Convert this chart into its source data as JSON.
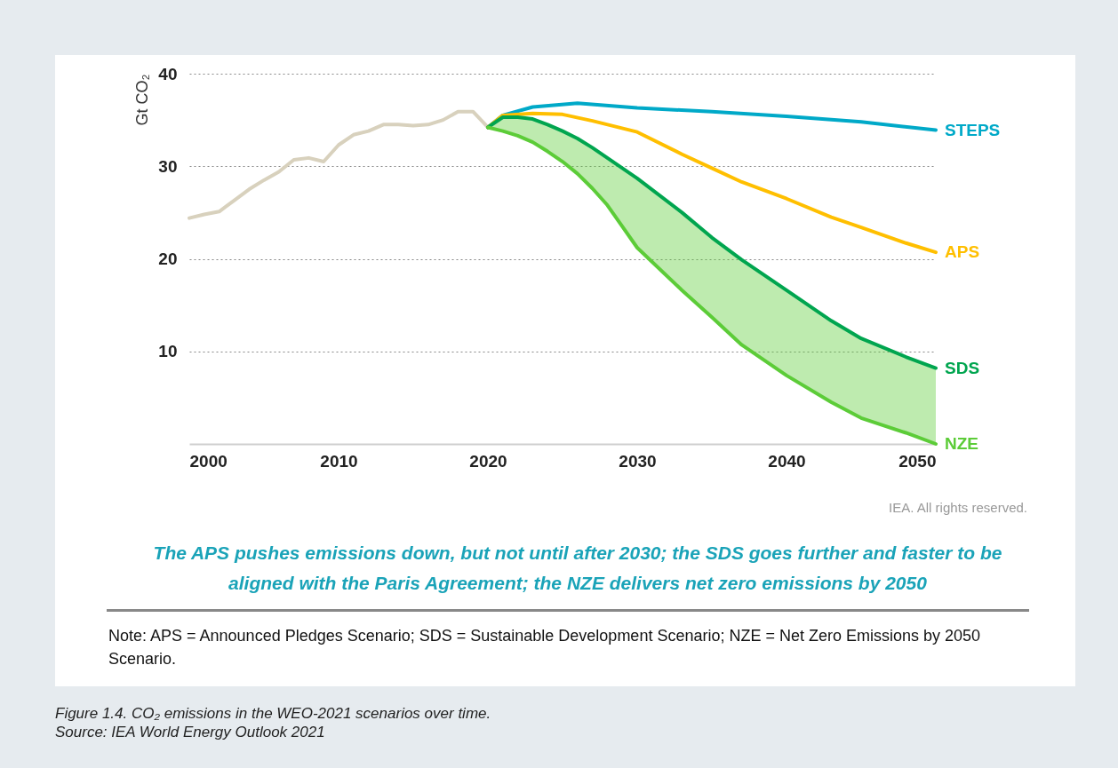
{
  "chart_data": {
    "type": "line",
    "ylabel": "Gt CO₂",
    "xlim": [
      2000,
      2050
    ],
    "xticks": [
      2000,
      2010,
      2020,
      2030,
      2040,
      2050
    ],
    "ylim": [
      0,
      40
    ],
    "yticks": [
      10,
      20,
      30,
      40
    ],
    "grid": "y",
    "series": [
      {
        "color": "#d8d1bd",
        "x": [
          2000,
          2001,
          2002,
          2003,
          2004,
          2005,
          2006,
          2007,
          2008,
          2009,
          2010,
          2011,
          2012,
          2013,
          2014,
          2015,
          2016,
          2017,
          2018,
          2019,
          2020
        ],
        "values": [
          24.4,
          24.8,
          25.1,
          26.3,
          27.5,
          28.5,
          29.4,
          30.7,
          30.9,
          30.5,
          32.3,
          33.4,
          33.8,
          34.5,
          34.5,
          34.4,
          34.5,
          35.0,
          35.9,
          35.9,
          34.2
        ]
      },
      {
        "name": "STEPS",
        "color": "#00a9c8",
        "x": [
          2020,
          2021,
          2023,
          2026,
          2030,
          2035,
          2040,
          2045,
          2050
        ],
        "values": [
          34.2,
          35.5,
          36.4,
          36.8,
          36.3,
          35.9,
          35.4,
          34.8,
          33.9
        ]
      },
      {
        "name": "APS",
        "color": "#ffbf00",
        "x": [
          2020,
          2021,
          2023,
          2025,
          2027,
          2030,
          2033,
          2035,
          2037,
          2040,
          2043,
          2045,
          2048,
          2050
        ],
        "values": [
          34.2,
          35.5,
          35.7,
          35.6,
          34.9,
          33.7,
          31.3,
          29.8,
          28.3,
          26.5,
          24.5,
          23.4,
          21.7,
          20.7
        ]
      },
      {
        "name": "SDS",
        "color": "#00a54f",
        "x": [
          2020,
          2021,
          2022,
          2023,
          2024,
          2025,
          2026,
          2027,
          2028,
          2030,
          2033,
          2035,
          2037,
          2040,
          2043,
          2045,
          2048,
          2050
        ],
        "values": [
          34.2,
          35.3,
          35.3,
          35.1,
          34.5,
          33.8,
          33.0,
          32.0,
          30.9,
          28.7,
          25.0,
          22.3,
          19.9,
          16.6,
          13.3,
          11.4,
          9.4,
          8.2
        ]
      },
      {
        "name": "NZE",
        "color": "#5ccc38",
        "x": [
          2020,
          2021,
          2022,
          2023,
          2024,
          2025,
          2026,
          2027,
          2028,
          2030,
          2033,
          2035,
          2037,
          2040,
          2043,
          2045,
          2048,
          2050
        ],
        "values": [
          34.2,
          33.8,
          33.3,
          32.6,
          31.6,
          30.5,
          29.2,
          27.6,
          25.8,
          21.2,
          16.6,
          13.7,
          10.7,
          7.4,
          4.5,
          2.8,
          1.2,
          0
        ],
        "lower": [
          34.2,
          33.8,
          33.3,
          32.6,
          31.6,
          30.5,
          29.2,
          27.6,
          25.8,
          21.2,
          16.6,
          13.7,
          10.7,
          7.4,
          4.5,
          2.8,
          1.2,
          0
        ],
        "upper": [
          34.2,
          35.3,
          35.3,
          35.1,
          34.5,
          33.8,
          33.0,
          32.0,
          30.9,
          28.7,
          25.0,
          22.3,
          19.9,
          16.6,
          13.3,
          11.4,
          9.4,
          8.2
        ]
      }
    ],
    "annotations": [
      "IEA. All rights reserved.",
      "The APS pushes emissions down, but not until after 2030; the SDS goes further and faster to be aligned with the Paris Agreement; the NZE delivers net zero emissions by 2050",
      "Note:  APS = Announced Pledges Scenario; SDS = Sustainable Development Scenario; NZE = Net Zero Emissions by 2050 Scenario.",
      "Figure 1.4. CO₂ emissions in the WEO-2021 scenarios over time.",
      "Source: IEA World Energy Outlook 2021"
    ]
  }
}
